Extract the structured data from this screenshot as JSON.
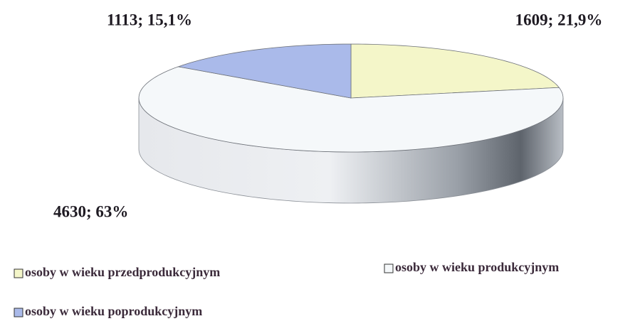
{
  "chart_data": {
    "type": "pie",
    "categories": [
      "osoby w wieku przedprodukcyjnym",
      "osoby w wieku produkcyjnym",
      "osoby w wieku poprodukcyjnym"
    ],
    "values": [
      1609,
      4630,
      1113
    ],
    "value_labels": [
      "1609; 21,9%",
      "4630; 63%",
      "1113; 15,1%"
    ],
    "colors": [
      "#f4f6c9",
      "#f5f8fa",
      "#aabaea"
    ]
  }
}
